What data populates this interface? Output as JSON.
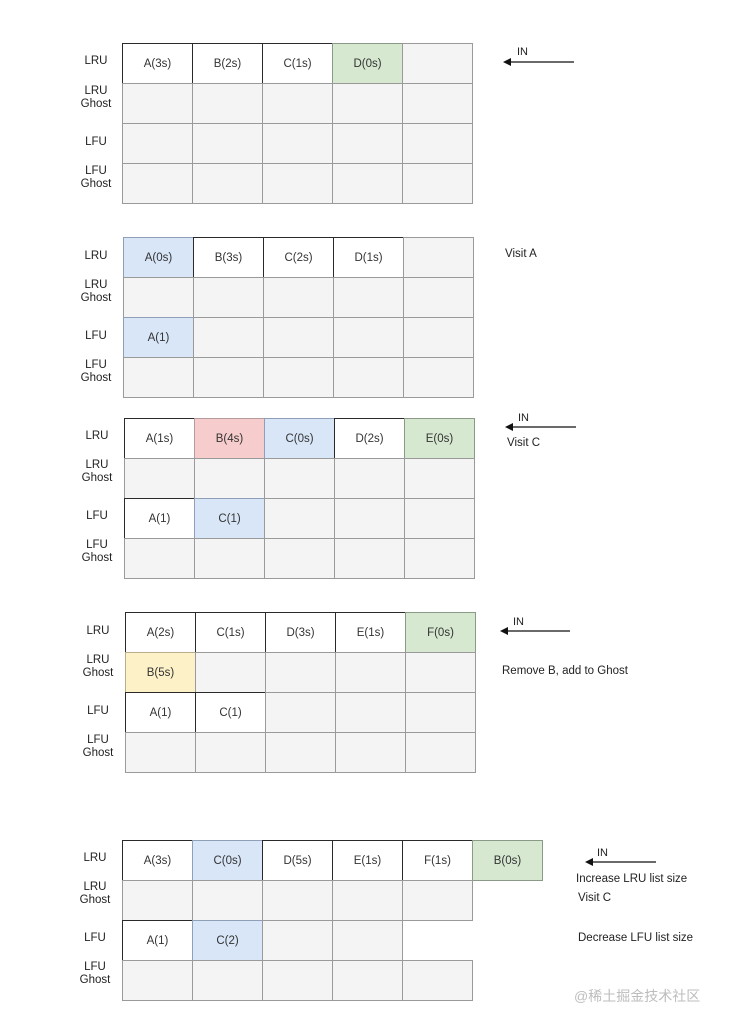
{
  "row_labels": {
    "lru": "LRU",
    "lru_ghost_1": "LRU",
    "lru_ghost_2": "Ghost",
    "lfu": "LFU",
    "lfu_ghost_1": "LFU",
    "lfu_ghost_2": "Ghost"
  },
  "in_label": "IN",
  "watermark": "@稀土掘金技术社区",
  "colors": {
    "green": "#d6e8d0",
    "blue": "#d8e6f8",
    "red": "#f7cccc",
    "yellow": "#fdf1c8",
    "empty": "#f4f4f4"
  },
  "stages": [
    {
      "notes": [],
      "has_in_arrow": true,
      "rows": [
        [
          {
            "text": "A(3s)",
            "style": "filled"
          },
          {
            "text": "B(2s)",
            "style": "filled"
          },
          {
            "text": "C(1s)",
            "style": "filled"
          },
          {
            "text": "D(0s)",
            "style": "green"
          },
          {
            "text": "",
            "style": "empty"
          }
        ],
        [
          {
            "text": "",
            "style": "empty"
          },
          {
            "text": "",
            "style": "empty"
          },
          {
            "text": "",
            "style": "empty"
          },
          {
            "text": "",
            "style": "empty"
          },
          {
            "text": "",
            "style": "empty"
          }
        ],
        [
          {
            "text": "",
            "style": "empty"
          },
          {
            "text": "",
            "style": "empty"
          },
          {
            "text": "",
            "style": "empty"
          },
          {
            "text": "",
            "style": "empty"
          },
          {
            "text": "",
            "style": "empty"
          }
        ],
        [
          {
            "text": "",
            "style": "empty"
          },
          {
            "text": "",
            "style": "empty"
          },
          {
            "text": "",
            "style": "empty"
          },
          {
            "text": "",
            "style": "empty"
          },
          {
            "text": "",
            "style": "empty"
          }
        ]
      ]
    },
    {
      "notes": [
        "Visit A"
      ],
      "has_in_arrow": false,
      "rows": [
        [
          {
            "text": "A(0s)",
            "style": "blue"
          },
          {
            "text": "B(3s)",
            "style": "filled"
          },
          {
            "text": "C(2s)",
            "style": "filled"
          },
          {
            "text": "D(1s)",
            "style": "filled"
          },
          {
            "text": "",
            "style": "empty"
          }
        ],
        [
          {
            "text": "",
            "style": "empty"
          },
          {
            "text": "",
            "style": "empty"
          },
          {
            "text": "",
            "style": "empty"
          },
          {
            "text": "",
            "style": "empty"
          },
          {
            "text": "",
            "style": "empty"
          }
        ],
        [
          {
            "text": "A(1)",
            "style": "blue"
          },
          {
            "text": "",
            "style": "empty"
          },
          {
            "text": "",
            "style": "empty"
          },
          {
            "text": "",
            "style": "empty"
          },
          {
            "text": "",
            "style": "empty"
          }
        ],
        [
          {
            "text": "",
            "style": "empty"
          },
          {
            "text": "",
            "style": "empty"
          },
          {
            "text": "",
            "style": "empty"
          },
          {
            "text": "",
            "style": "empty"
          },
          {
            "text": "",
            "style": "empty"
          }
        ]
      ]
    },
    {
      "notes": [
        "Visit C"
      ],
      "has_in_arrow": true,
      "rows": [
        [
          {
            "text": "A(1s)",
            "style": "filled"
          },
          {
            "text": "B(4s)",
            "style": "red"
          },
          {
            "text": "C(0s)",
            "style": "blue"
          },
          {
            "text": "D(2s)",
            "style": "filled"
          },
          {
            "text": "E(0s)",
            "style": "green"
          }
        ],
        [
          {
            "text": "",
            "style": "empty"
          },
          {
            "text": "",
            "style": "empty"
          },
          {
            "text": "",
            "style": "empty"
          },
          {
            "text": "",
            "style": "empty"
          },
          {
            "text": "",
            "style": "empty"
          }
        ],
        [
          {
            "text": "A(1)",
            "style": "filled"
          },
          {
            "text": "C(1)",
            "style": "blue"
          },
          {
            "text": "",
            "style": "empty"
          },
          {
            "text": "",
            "style": "empty"
          },
          {
            "text": "",
            "style": "empty"
          }
        ],
        [
          {
            "text": "",
            "style": "empty"
          },
          {
            "text": "",
            "style": "empty"
          },
          {
            "text": "",
            "style": "empty"
          },
          {
            "text": "",
            "style": "empty"
          },
          {
            "text": "",
            "style": "empty"
          }
        ]
      ]
    },
    {
      "notes": [
        "Remove B, add to Ghost"
      ],
      "has_in_arrow": true,
      "rows": [
        [
          {
            "text": "A(2s)",
            "style": "filled"
          },
          {
            "text": "C(1s)",
            "style": "filled"
          },
          {
            "text": "D(3s)",
            "style": "filled"
          },
          {
            "text": "E(1s)",
            "style": "filled"
          },
          {
            "text": "F(0s)",
            "style": "green"
          }
        ],
        [
          {
            "text": "B(5s)",
            "style": "yellow"
          },
          {
            "text": "",
            "style": "empty"
          },
          {
            "text": "",
            "style": "empty"
          },
          {
            "text": "",
            "style": "empty"
          },
          {
            "text": "",
            "style": "empty"
          }
        ],
        [
          {
            "text": "A(1)",
            "style": "filled"
          },
          {
            "text": "C(1)",
            "style": "filled"
          },
          {
            "text": "",
            "style": "empty"
          },
          {
            "text": "",
            "style": "empty"
          },
          {
            "text": "",
            "style": "empty"
          }
        ],
        [
          {
            "text": "",
            "style": "empty"
          },
          {
            "text": "",
            "style": "empty"
          },
          {
            "text": "",
            "style": "empty"
          },
          {
            "text": "",
            "style": "empty"
          },
          {
            "text": "",
            "style": "empty"
          }
        ]
      ]
    },
    {
      "notes": [
        "Increase LRU list size",
        "Visit C",
        "Decrease LFU list size"
      ],
      "has_in_arrow": true,
      "rows": [
        [
          {
            "text": "A(3s)",
            "style": "filled"
          },
          {
            "text": "C(0s)",
            "style": "blue"
          },
          {
            "text": "D(5s)",
            "style": "filled"
          },
          {
            "text": "E(1s)",
            "style": "filled"
          },
          {
            "text": "F(1s)",
            "style": "filled"
          },
          {
            "text": "B(0s)",
            "style": "green"
          }
        ],
        [
          {
            "text": "",
            "style": "empty"
          },
          {
            "text": "",
            "style": "empty"
          },
          {
            "text": "",
            "style": "empty"
          },
          {
            "text": "",
            "style": "empty"
          },
          {
            "text": "",
            "style": "empty"
          }
        ],
        [
          {
            "text": "A(1)",
            "style": "filled"
          },
          {
            "text": "C(2)",
            "style": "blue"
          },
          {
            "text": "",
            "style": "empty"
          },
          {
            "text": "",
            "style": "empty"
          }
        ],
        [
          {
            "text": "",
            "style": "empty"
          },
          {
            "text": "",
            "style": "empty"
          },
          {
            "text": "",
            "style": "empty"
          },
          {
            "text": "",
            "style": "empty"
          },
          {
            "text": "",
            "style": "empty"
          }
        ]
      ]
    }
  ]
}
